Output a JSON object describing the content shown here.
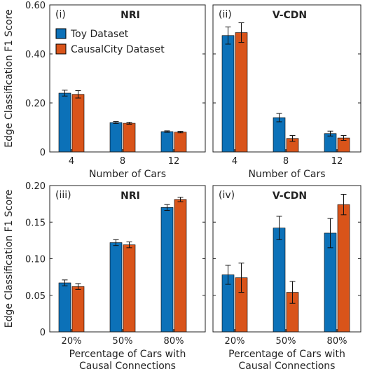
{
  "colors": {
    "toy": "#0c71b8",
    "causalcity": "#d9541a",
    "axis": "#222222",
    "errorbar": "#111111"
  },
  "shared_ylabel": "Edge Classification F1 Score",
  "legend": {
    "items": [
      "Toy Dataset",
      "CausalCity Dataset"
    ],
    "placement": "top-left of panel (i)"
  },
  "chart_data": [
    {
      "panel": "(i)",
      "title": "NRI",
      "type": "bar",
      "categories": [
        "4",
        "8",
        "12"
      ],
      "xlabel": [
        "Number of Cars"
      ],
      "ylabel": "Edge Classification F1 Score",
      "ylim": [
        0,
        0.6
      ],
      "yticks": [
        0,
        0.2,
        0.4,
        0.6
      ],
      "ytick_labels": [
        "0",
        "0.20",
        "0.40",
        "0.60"
      ],
      "series": [
        {
          "name": "Toy Dataset",
          "values": [
            0.24,
            0.12,
            0.083
          ],
          "errors": [
            0.012,
            0.004,
            0.003
          ]
        },
        {
          "name": "CausalCity Dataset",
          "values": [
            0.235,
            0.117,
            0.081
          ],
          "errors": [
            0.015,
            0.004,
            0.003
          ]
        }
      ]
    },
    {
      "panel": "(ii)",
      "title": "V-CDN",
      "type": "bar",
      "categories": [
        "4",
        "8",
        "12"
      ],
      "xlabel": [
        "Number of Cars"
      ],
      "ylabel": "",
      "ylim": [
        0,
        0.6
      ],
      "yticks": [
        0,
        0.2,
        0.4,
        0.6
      ],
      "ytick_labels": [
        "",
        "",
        "",
        ""
      ],
      "series": [
        {
          "name": "Toy Dataset",
          "values": [
            0.475,
            0.14,
            0.075
          ],
          "errors": [
            0.035,
            0.017,
            0.01
          ]
        },
        {
          "name": "CausalCity Dataset",
          "values": [
            0.487,
            0.055,
            0.057
          ],
          "errors": [
            0.04,
            0.012,
            0.01
          ]
        }
      ]
    },
    {
      "panel": "(iii)",
      "title": "NRI",
      "type": "bar",
      "categories": [
        "20%",
        "50%",
        "80%"
      ],
      "xlabel": [
        "Percentage of Cars with",
        "Causal Connections"
      ],
      "ylabel": "Edge Classification F1 Score",
      "ylim": [
        0,
        0.2
      ],
      "yticks": [
        0,
        0.05,
        0.1,
        0.15,
        0.2
      ],
      "ytick_labels": [
        "0",
        "0.05",
        "0.10",
        "0.15",
        "0.20"
      ],
      "series": [
        {
          "name": "Toy Dataset",
          "values": [
            0.067,
            0.122,
            0.17
          ],
          "errors": [
            0.004,
            0.004,
            0.004
          ]
        },
        {
          "name": "CausalCity Dataset",
          "values": [
            0.062,
            0.119,
            0.181
          ],
          "errors": [
            0.004,
            0.004,
            0.003
          ]
        }
      ]
    },
    {
      "panel": "(iv)",
      "title": "V-CDN",
      "type": "bar",
      "categories": [
        "20%",
        "50%",
        "80%"
      ],
      "xlabel": [
        "Percentage of Cars with",
        "Causal Connections"
      ],
      "ylabel": "",
      "ylim": [
        0,
        0.2
      ],
      "yticks": [
        0,
        0.05,
        0.1,
        0.15,
        0.2
      ],
      "ytick_labels": [
        "",
        "",
        "",
        "",
        ""
      ],
      "series": [
        {
          "name": "Toy Dataset",
          "values": [
            0.078,
            0.142,
            0.135
          ],
          "errors": [
            0.013,
            0.016,
            0.02
          ]
        },
        {
          "name": "CausalCity Dataset",
          "values": [
            0.074,
            0.054,
            0.174
          ],
          "errors": [
            0.02,
            0.015,
            0.014
          ]
        }
      ]
    }
  ]
}
